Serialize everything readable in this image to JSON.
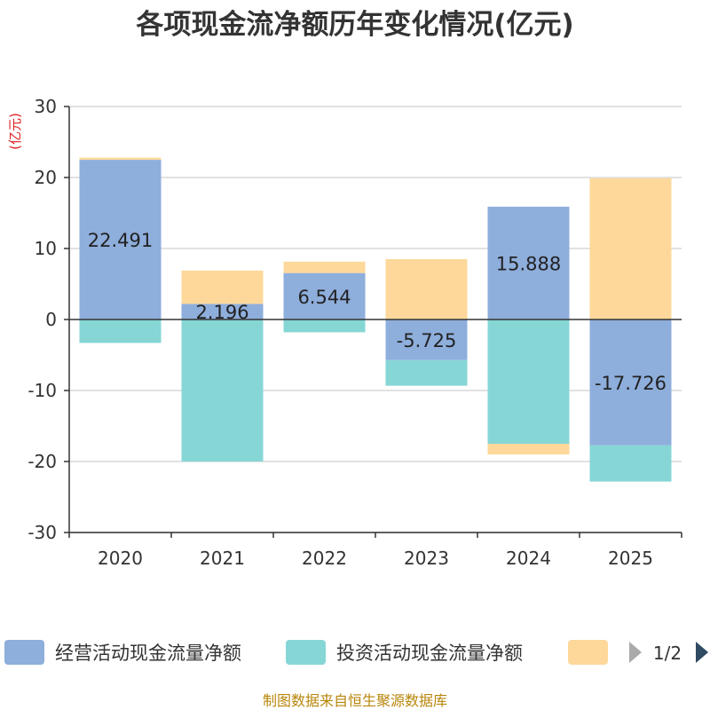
{
  "chart_data": {
    "type": "bar",
    "stacked": true,
    "title": "各项现金流净额历年变化情况(亿元)",
    "ylabel": "(亿元)",
    "ylim": [
      -30,
      30
    ],
    "yticks": [
      30,
      20,
      10,
      0,
      -10,
      -20,
      -30
    ],
    "categories": [
      "2020",
      "2021",
      "2022",
      "2023",
      "2024",
      "2025"
    ],
    "series": [
      {
        "name": "经营活动现金流量净额",
        "color": "#8eaedc",
        "values": [
          22.491,
          2.196,
          6.544,
          -5.725,
          15.888,
          -17.726
        ],
        "labels": [
          "22.491",
          "2.196",
          "6.544",
          "-5.725",
          "15.888",
          "-17.726"
        ]
      },
      {
        "name": "投资活动现金流量净额",
        "color": "#86d6d6",
        "values": [
          -3.3,
          -20.0,
          -1.8,
          -3.6,
          -17.5,
          -5.1
        ]
      },
      {
        "name": "",
        "color": "#fdd89a",
        "values": [
          0.3,
          4.7,
          1.6,
          8.5,
          -1.5,
          19.9
        ]
      }
    ],
    "legend": {
      "position": "bottom",
      "page": "1/2"
    }
  },
  "footer": {
    "source": "制图数据来自恒生聚源数据库"
  },
  "colors": {
    "axis": "#333333",
    "grid": "#d9d9d9",
    "unit": "#e02020",
    "source": "#b8860b"
  }
}
